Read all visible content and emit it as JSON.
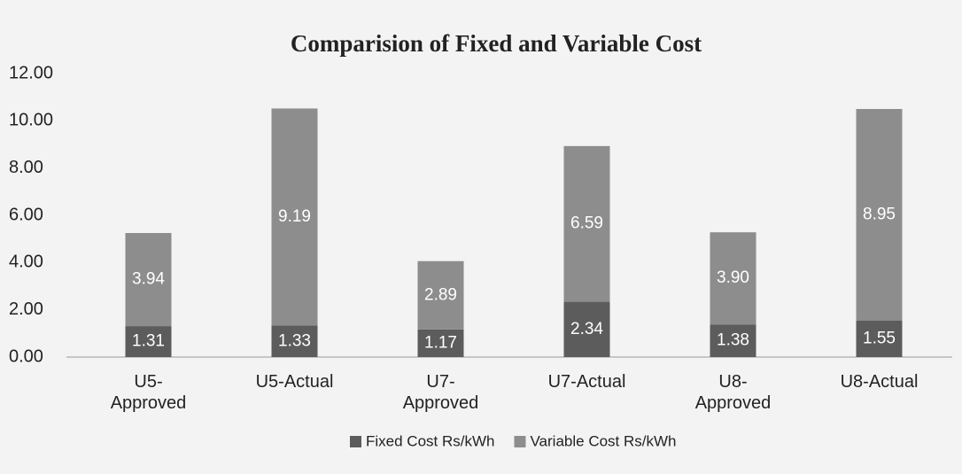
{
  "chart_data": {
    "type": "stacked_bar",
    "title": "Comparision of Fixed and Variable Cost",
    "categories": [
      "U5-Approved",
      "U5-Actual",
      "U7-Approved",
      "U7-Actual",
      "U8-Approved",
      "U8-Actual"
    ],
    "series": [
      {
        "name": "Fixed Cost Rs/kWh",
        "color": "#5c5c5c",
        "values": [
          1.31,
          1.33,
          1.17,
          2.34,
          1.38,
          1.55
        ],
        "value_labels": [
          "1.31",
          "1.33",
          "1.17",
          "2.34",
          "1.38",
          "1.55"
        ]
      },
      {
        "name": "Variable Cost Rs/kWh",
        "color": "#8d8d8d",
        "values": [
          3.94,
          9.19,
          2.89,
          6.59,
          3.9,
          8.95
        ],
        "value_labels": [
          "3.94",
          "9.19",
          "2.89",
          "6.59",
          "3.90",
          "8.95"
        ]
      }
    ],
    "ylim": [
      0,
      12
    ],
    "yticks": [
      {
        "value": 0,
        "label": "0.00"
      },
      {
        "value": 2,
        "label": "2.00"
      },
      {
        "value": 4,
        "label": "4.00"
      },
      {
        "value": 6,
        "label": "6.00"
      },
      {
        "value": 8,
        "label": "8.00"
      },
      {
        "value": 10,
        "label": "10.00"
      },
      {
        "value": 12,
        "label": "12.00"
      }
    ],
    "legend": "bottom"
  }
}
